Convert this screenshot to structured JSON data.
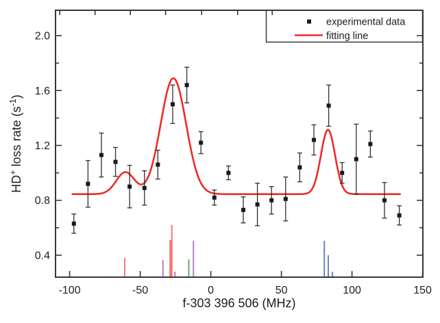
{
  "chart_data": {
    "type": "scatter",
    "title": "",
    "xlabel": "f-303 396 506 (MHz)",
    "ylabel": "HD+ loss rate (s-1)",
    "ylabel_rich": [
      [
        "HD",
        false
      ],
      [
        "+",
        true
      ],
      [
        " loss rate (s",
        false
      ],
      [
        "-1",
        true
      ],
      [
        ")",
        false
      ]
    ],
    "xlim": [
      -110,
      150.2
    ],
    "ylim": [
      0.24,
      2.185
    ],
    "x_ticks": [
      -100,
      -50,
      0,
      50,
      100,
      150
    ],
    "y_ticks": [
      0.4,
      0.8,
      1.2,
      1.6,
      2.0
    ],
    "y_minor_ticks": [
      0.6,
      1.0,
      1.4,
      1.8
    ],
    "top_ticks": [
      -107,
      -82,
      -57,
      -32,
      -6.5,
      19,
      43.5
    ],
    "grid": false,
    "legend": {
      "position": "top-right",
      "items": [
        {
          "label": "experimental data",
          "type": "marker"
        },
        {
          "label": "fitting line",
          "type": "line"
        }
      ]
    },
    "experimental": {
      "name": "experimental data",
      "points": [
        {
          "x": -97,
          "y": 0.63,
          "err": 0.07
        },
        {
          "x": -87,
          "y": 0.92,
          "err": 0.17
        },
        {
          "x": -77.5,
          "y": 1.13,
          "err": 0.16
        },
        {
          "x": -67.5,
          "y": 1.08,
          "err": 0.105
        },
        {
          "x": -57.5,
          "y": 0.9,
          "err": 0.155
        },
        {
          "x": -47,
          "y": 0.89,
          "err": 0.125
        },
        {
          "x": -37.5,
          "y": 1.06,
          "err": 0.105
        },
        {
          "x": -27,
          "y": 1.5,
          "err": 0.14
        },
        {
          "x": -17,
          "y": 1.64,
          "err": 0.13
        },
        {
          "x": -7,
          "y": 1.22,
          "err": 0.08
        },
        {
          "x": 2.5,
          "y": 0.82,
          "err": 0.055
        },
        {
          "x": 12.5,
          "y": 1.0,
          "err": 0.05
        },
        {
          "x": 23,
          "y": 0.73,
          "err": 0.095
        },
        {
          "x": 33,
          "y": 0.77,
          "err": 0.155
        },
        {
          "x": 43,
          "y": 0.8,
          "err": 0.1
        },
        {
          "x": 53,
          "y": 0.81,
          "err": 0.16
        },
        {
          "x": 63,
          "y": 1.04,
          "err": 0.105
        },
        {
          "x": 73,
          "y": 1.24,
          "err": 0.11
        },
        {
          "x": 83.5,
          "y": 1.49,
          "err": 0.15
        },
        {
          "x": 93,
          "y": 1.0,
          "err": 0.075
        },
        {
          "x": 103,
          "y": 1.1,
          "err": 0.255
        },
        {
          "x": 113,
          "y": 1.21,
          "err": 0.095
        },
        {
          "x": 123,
          "y": 0.8,
          "err": 0.13
        },
        {
          "x": 133.5,
          "y": 0.69,
          "err": 0.07
        }
      ]
    },
    "fit": {
      "name": "fitting line",
      "baseline": 0.845,
      "x_range": [
        -98,
        134
      ],
      "peaks": [
        {
          "center": -60.5,
          "amplitude": 0.16,
          "sigma": 6.5
        },
        {
          "center": -26.5,
          "amplitude": 0.845,
          "sigma": 9
        },
        {
          "center": 83,
          "amplitude": 0.47,
          "sigma": 5
        }
      ]
    },
    "stems": [
      {
        "x": -61.0,
        "y": 0.38,
        "color": "red"
      },
      {
        "x": -33.9,
        "y": 0.365,
        "color": "purple"
      },
      {
        "x": -28.5,
        "y": 0.51,
        "color": "red",
        "w": 3.5
      },
      {
        "x": -27.6,
        "y": 0.62,
        "color": "red"
      },
      {
        "x": -25.4,
        "y": 0.28,
        "color": "purple"
      },
      {
        "x": -15.6,
        "y": 0.37,
        "color": "green"
      },
      {
        "x": -12.3,
        "y": 0.505,
        "color": "purple"
      },
      {
        "x": 80.4,
        "y": 0.505,
        "color": "blue"
      },
      {
        "x": 83.2,
        "y": 0.4,
        "color": "blue"
      },
      {
        "x": 86.1,
        "y": 0.28,
        "color": "blue"
      }
    ],
    "colors": {
      "frame": "#363636",
      "text": "#1d1d1d",
      "marker": "#1a1a1a",
      "error_bar": "#2e2e2e",
      "fit_line": "#ee2b24",
      "stem_red": "#f4796e",
      "stem_purple": "#b77cc5",
      "stem_green": "#63b266",
      "stem_blue": "#6f81c2"
    }
  }
}
